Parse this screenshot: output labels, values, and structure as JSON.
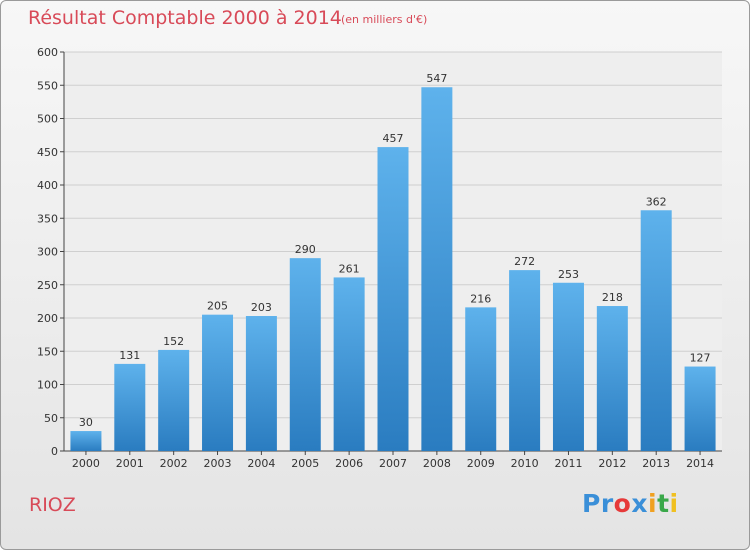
{
  "chart_data": {
    "type": "bar",
    "title": "Résultat Comptable 2000 à 2014",
    "subtitle": "(en milliers d'€)",
    "categories": [
      "2000",
      "2001",
      "2002",
      "2003",
      "2004",
      "2005",
      "2006",
      "2007",
      "2008",
      "2009",
      "2010",
      "2011",
      "2012",
      "2013",
      "2014"
    ],
    "values": [
      30,
      131,
      152,
      205,
      203,
      290,
      261,
      457,
      547,
      216,
      272,
      253,
      218,
      362,
      127
    ],
    "ylim": [
      0,
      600
    ],
    "ytick_step": 50,
    "xlabel": "",
    "ylabel": "",
    "grid": true,
    "bar_color_top": "#5eb2ec",
    "bar_color_bottom": "#2a7cc0"
  },
  "location": "RIOZ",
  "brand": {
    "letters": [
      "P",
      "r",
      "o",
      "x",
      "i",
      "t",
      "i"
    ],
    "colors": [
      "#3a8fd8",
      "#3a8fd8",
      "#e63a3a",
      "#3a8fd8",
      "#f0a020",
      "#3aa84a",
      "#f0c020"
    ]
  }
}
